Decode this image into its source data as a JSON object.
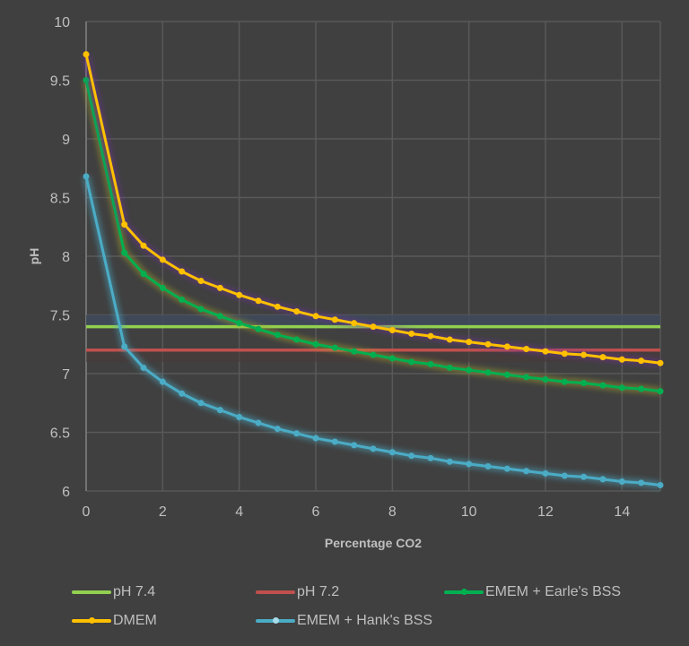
{
  "chart_data": {
    "type": "line",
    "title": "",
    "xlabel": "Percentage CO2",
    "ylabel": "pH",
    "xlim": [
      0,
      15
    ],
    "ylim": [
      6,
      10
    ],
    "xticks": [
      "0",
      "2",
      "4",
      "6",
      "8",
      "10",
      "12",
      "14"
    ],
    "yticks": [
      "6",
      "6.5",
      "7",
      "7.5",
      "8",
      "8.5",
      "9",
      "9.5",
      "10"
    ],
    "grid": true,
    "legend_position": "bottom",
    "x": [
      0,
      1,
      1.5,
      2,
      2.5,
      3,
      3.5,
      4,
      4.5,
      5,
      5.5,
      6,
      6.5,
      7,
      7.5,
      8,
      8.5,
      9,
      9.5,
      10,
      10.5,
      11,
      11.5,
      12,
      12.5,
      13,
      13.5,
      14,
      14.5,
      15
    ],
    "reference_lines": [
      {
        "name": "pH 7.4",
        "value": 7.4,
        "color": "#92d050"
      },
      {
        "name": "pH 7.2",
        "value": 7.2,
        "color": "#c0504d"
      }
    ],
    "series": [
      {
        "name": "EMEM + Earle's BSS",
        "color": "#00b050",
        "glow": "#a6a62a",
        "values": [
          9.5,
          8.03,
          7.85,
          7.73,
          7.63,
          7.55,
          7.49,
          7.43,
          7.38,
          7.33,
          7.29,
          7.25,
          7.22,
          7.19,
          7.16,
          7.13,
          7.1,
          7.08,
          7.05,
          7.03,
          7.01,
          6.99,
          6.97,
          6.95,
          6.93,
          6.92,
          6.9,
          6.88,
          6.87,
          6.85
        ]
      },
      {
        "name": "DMEM",
        "color": "#ffc000",
        "glow": "#7030a0",
        "values": [
          9.72,
          8.27,
          8.09,
          7.97,
          7.87,
          7.79,
          7.73,
          7.67,
          7.62,
          7.57,
          7.53,
          7.49,
          7.46,
          7.43,
          7.4,
          7.37,
          7.34,
          7.32,
          7.29,
          7.27,
          7.25,
          7.23,
          7.21,
          7.19,
          7.17,
          7.16,
          7.14,
          7.12,
          7.11,
          7.09
        ]
      },
      {
        "name": "EMEM + Hank's BSS",
        "color": "#4bacc6",
        "glow": "#4bacc6",
        "values": [
          8.68,
          7.23,
          7.05,
          6.93,
          6.83,
          6.75,
          6.69,
          6.63,
          6.58,
          6.53,
          6.49,
          6.45,
          6.42,
          6.39,
          6.36,
          6.33,
          6.3,
          6.28,
          6.25,
          6.23,
          6.21,
          6.19,
          6.17,
          6.15,
          6.13,
          6.12,
          6.1,
          6.08,
          6.07,
          6.05
        ]
      }
    ],
    "legend": [
      "pH 7.4",
      "pH 7.2",
      "EMEM + Earle's BSS",
      "DMEM",
      "EMEM + Hank's BSS"
    ]
  }
}
